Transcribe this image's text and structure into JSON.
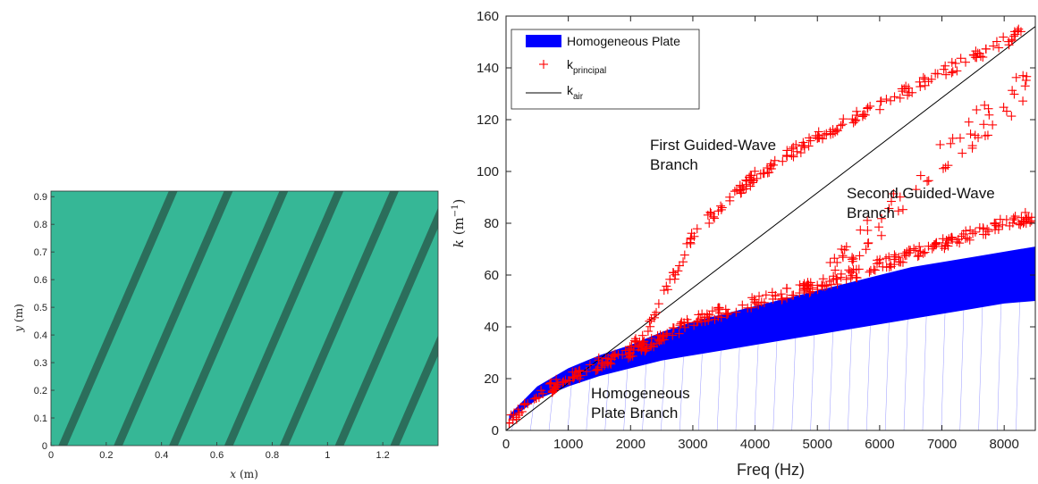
{
  "chart_data": [
    {
      "type": "heatmap",
      "xlabel_var": "x",
      "xlabel_unit": "(m)",
      "ylabel_var": "y",
      "ylabel_unit": "(m)",
      "xlim": [
        0,
        1.4
      ],
      "ylim": [
        0,
        0.92
      ],
      "x_ticks": [
        "0",
        "0.2",
        "0.4",
        "0.6",
        "0.8",
        "1",
        "1.2"
      ],
      "y_ticks": [
        "0",
        "0.1",
        "0.2",
        "0.3",
        "0.4",
        "0.5",
        "0.6",
        "0.7",
        "0.8",
        "0.9"
      ],
      "stripe_bottom_x": [
        0.04,
        0.24,
        0.44,
        0.64,
        0.84,
        1.04,
        1.24,
        1.44
      ],
      "stripe_dx_per_y": 0.44,
      "colors": {
        "background": "#36b796",
        "stripe": "#2b6e5b"
      }
    },
    {
      "type": "scatter",
      "xlabel": "Freq  (Hz)",
      "ylabel_var": "k",
      "ylabel_unit": "(m",
      "ylabel_exp": "−1",
      "ylabel_close": ")",
      "xlim": [
        0,
        8500
      ],
      "ylim": [
        0,
        160
      ],
      "x_ticks": [
        "0",
        "1000",
        "2000",
        "3000",
        "4000",
        "5000",
        "6000",
        "7000",
        "8000"
      ],
      "y_ticks": [
        "0",
        "20",
        "40",
        "60",
        "80",
        "100",
        "120",
        "140",
        "160"
      ],
      "grid": false,
      "legend_placement": "top-left",
      "legend": [
        {
          "label": "Homogeneous Plate",
          "sub": ""
        },
        {
          "label": "k",
          "sub": "principal"
        },
        {
          "label": "k",
          "sub": "air"
        }
      ],
      "annotations": [
        {
          "lines": [
            "First Guided-Wave",
            "Branch"
          ],
          "x": 2550,
          "y": 110
        },
        {
          "lines": [
            "Second Guided-Wave",
            "Branch"
          ],
          "x": 5700,
          "y": 88
        },
        {
          "lines": [
            "Homogeneous",
            "Plate Branch"
          ],
          "x": 1450,
          "y": 12
        }
      ],
      "band": {
        "name": "Homogeneous Plate",
        "freq": [
          50,
          500,
          1000,
          1500,
          2000,
          2500,
          3000,
          3500,
          4000,
          4500,
          5000,
          5500,
          6000,
          6500,
          7000,
          7500,
          8000,
          8500
        ],
        "lower": [
          4,
          12,
          17,
          21,
          24,
          27,
          29,
          31,
          33,
          35,
          37,
          39,
          41,
          43,
          45,
          47,
          49,
          50
        ],
        "upper": [
          6,
          17,
          24,
          29,
          33,
          38,
          42,
          45,
          48,
          51,
          54,
          57,
          60,
          63,
          65,
          67,
          69,
          71
        ]
      },
      "k_air": {
        "freq": [
          0,
          8500
        ],
        "k": [
          0,
          156
        ]
      },
      "k_principal_branches": [
        {
          "freq": [
            50,
            300,
            600,
            1000,
            1500,
            2000,
            2300,
            2600,
            3000,
            3500,
            4000,
            4500,
            5000,
            5500,
            6000,
            6500,
            7000,
            7500,
            8000,
            8500
          ],
          "k": [
            3,
            10,
            15,
            20,
            26,
            31,
            40,
            55,
            75,
            88,
            98,
            106,
            113,
            120,
            126,
            132,
            138,
            144,
            150,
            157
          ]
        },
        {
          "freq": [
            1500,
            2000,
            2500,
            3000,
            3500,
            4000,
            4500,
            5000,
            5500,
            6000,
            6500,
            7000,
            7500,
            8000,
            8500
          ],
          "k": [
            25,
            30,
            36,
            42,
            46,
            50,
            53,
            56,
            60,
            64,
            68,
            72,
            76,
            80,
            83
          ]
        },
        {
          "freq": [
            5200,
            5600,
            6000,
            6400,
            6800,
            7200,
            7600,
            8000,
            8400
          ],
          "k": [
            60,
            70,
            80,
            90,
            100,
            110,
            118,
            126,
            134
          ]
        }
      ],
      "colors": {
        "band": "#0000ff",
        "points": "#ff0000",
        "k_air": "#000000"
      }
    }
  ]
}
